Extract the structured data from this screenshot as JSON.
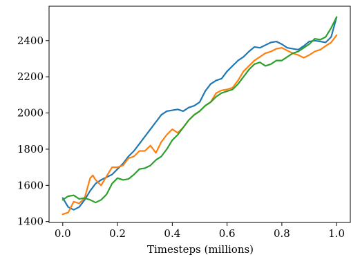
{
  "chart_data": {
    "type": "line",
    "title": "",
    "xlabel": "Timesteps (millions)",
    "ylabel": "",
    "xlim": [
      -0.05,
      1.05
    ],
    "ylim": [
      1395,
      2590
    ],
    "xticks": [
      0.0,
      0.2,
      0.4,
      0.6,
      0.8,
      1.0
    ],
    "xtick_labels": [
      "0.0",
      "0.2",
      "0.4",
      "0.6",
      "0.8",
      "1.0"
    ],
    "yticks": [
      1400,
      1600,
      1800,
      2000,
      2200,
      2400
    ],
    "ytick_labels": [
      "1400",
      "1600",
      "1800",
      "2000",
      "2200",
      "2400"
    ],
    "grid": false,
    "legend": "none",
    "series": [
      {
        "color": "#1f77b4",
        "x": [
          0.0,
          0.02,
          0.04,
          0.06,
          0.08,
          0.1,
          0.12,
          0.14,
          0.16,
          0.18,
          0.2,
          0.22,
          0.24,
          0.26,
          0.28,
          0.3,
          0.32,
          0.34,
          0.36,
          0.38,
          0.4,
          0.42,
          0.44,
          0.46,
          0.48,
          0.5,
          0.52,
          0.54,
          0.56,
          0.58,
          0.6,
          0.62,
          0.64,
          0.66,
          0.68,
          0.7,
          0.72,
          0.74,
          0.76,
          0.78,
          0.8,
          0.82,
          0.84,
          0.86,
          0.88,
          0.9,
          0.92,
          0.94,
          0.96,
          0.98,
          1.0
        ],
        "y": [
          1530,
          1480,
          1465,
          1480,
          1520,
          1570,
          1610,
          1630,
          1645,
          1660,
          1690,
          1720,
          1760,
          1790,
          1830,
          1870,
          1910,
          1950,
          1990,
          2010,
          2015,
          2020,
          2010,
          2030,
          2040,
          2060,
          2120,
          2160,
          2180,
          2190,
          2230,
          2260,
          2290,
          2310,
          2340,
          2365,
          2360,
          2375,
          2390,
          2395,
          2380,
          2360,
          2355,
          2350,
          2370,
          2395,
          2400,
          2395,
          2390,
          2420,
          2530
        ]
      },
      {
        "color": "#ff7f0e",
        "x": [
          0.0,
          0.02,
          0.04,
          0.06,
          0.08,
          0.1,
          0.11,
          0.12,
          0.14,
          0.16,
          0.18,
          0.2,
          0.22,
          0.24,
          0.26,
          0.28,
          0.3,
          0.32,
          0.34,
          0.36,
          0.38,
          0.4,
          0.42,
          0.44,
          0.46,
          0.48,
          0.5,
          0.52,
          0.54,
          0.56,
          0.58,
          0.6,
          0.62,
          0.64,
          0.66,
          0.68,
          0.7,
          0.72,
          0.74,
          0.76,
          0.78,
          0.8,
          0.82,
          0.84,
          0.86,
          0.88,
          0.9,
          0.92,
          0.94,
          0.96,
          0.98,
          1.0
        ],
        "y": [
          1440,
          1450,
          1510,
          1500,
          1530,
          1640,
          1655,
          1630,
          1600,
          1650,
          1700,
          1700,
          1710,
          1750,
          1760,
          1790,
          1790,
          1820,
          1780,
          1840,
          1880,
          1910,
          1890,
          1920,
          1960,
          1990,
          2010,
          2040,
          2060,
          2110,
          2125,
          2130,
          2140,
          2180,
          2230,
          2260,
          2290,
          2310,
          2330,
          2340,
          2355,
          2360,
          2345,
          2330,
          2320,
          2305,
          2320,
          2340,
          2350,
          2370,
          2390,
          2430
        ]
      },
      {
        "color": "#2ca02c",
        "x": [
          0.0,
          0.02,
          0.04,
          0.06,
          0.08,
          0.1,
          0.12,
          0.14,
          0.16,
          0.18,
          0.2,
          0.22,
          0.24,
          0.26,
          0.28,
          0.3,
          0.32,
          0.34,
          0.36,
          0.38,
          0.4,
          0.42,
          0.44,
          0.46,
          0.48,
          0.5,
          0.52,
          0.54,
          0.56,
          0.58,
          0.6,
          0.62,
          0.64,
          0.66,
          0.68,
          0.7,
          0.72,
          0.74,
          0.76,
          0.78,
          0.8,
          0.82,
          0.84,
          0.86,
          0.88,
          0.9,
          0.92,
          0.94,
          0.96,
          0.98,
          1.0
        ],
        "y": [
          1520,
          1540,
          1545,
          1525,
          1530,
          1520,
          1505,
          1520,
          1550,
          1610,
          1640,
          1630,
          1635,
          1660,
          1690,
          1695,
          1710,
          1740,
          1760,
          1800,
          1850,
          1880,
          1920,
          1960,
          1990,
          2010,
          2040,
          2060,
          2090,
          2110,
          2120,
          2130,
          2160,
          2200,
          2240,
          2270,
          2280,
          2260,
          2270,
          2290,
          2290,
          2310,
          2330,
          2340,
          2360,
          2380,
          2410,
          2405,
          2420,
          2470,
          2530
        ]
      }
    ]
  }
}
